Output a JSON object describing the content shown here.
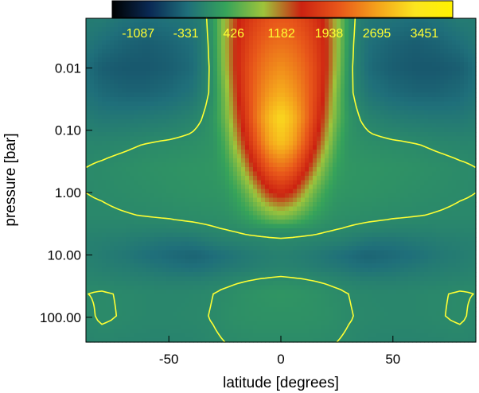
{
  "chart_data": {
    "type": "heatmap",
    "xlabel": "latitude [degrees]",
    "ylabel": "pressure [bar]",
    "x_ticks": [
      {
        "value": -50,
        "label": "-50"
      },
      {
        "value": 0,
        "label": "0"
      },
      {
        "value": 50,
        "label": "50"
      }
    ],
    "y_ticks": [
      {
        "value": 0.01,
        "label": "0.01"
      },
      {
        "value": 0.1,
        "label": "0.10"
      },
      {
        "value": 1,
        "label": "1.00"
      },
      {
        "value": 10,
        "label": "10.00"
      },
      {
        "value": 100,
        "label": "100.00"
      }
    ],
    "xlim": [
      -87,
      87
    ],
    "ylim_pressure": [
      0.0016,
      250
    ],
    "y_scale": "log",
    "y_inverted": true,
    "colorbar": {
      "placement": "top",
      "colormap": [
        "#000000",
        "#0a2a55",
        "#1f6f7a",
        "#36a35a",
        "#9ec43b",
        "#cc2211",
        "#e8571a",
        "#f4a21c",
        "#fbe51f",
        "#fff200"
      ],
      "range": [
        -1500,
        3900
      ],
      "tick_values": [
        -1087,
        -331,
        426,
        1182,
        1938,
        2695,
        3451
      ],
      "tick_labels": [
        "-1087",
        "-331",
        "426",
        "1182",
        "1938",
        "2695",
        "3451"
      ],
      "label_color": "#ffff33"
    },
    "contour_color": "#ffff33",
    "contour_levels": [
      0
    ],
    "field_description": "Zonal-mean zonal wind: strong positive equatorial jet (max ~3200) centered at the equator near 0.1 bar, narrowing with depth and vanishing near 3 bar; weak negative values at mid/high latitudes and near 10 bar.",
    "lat": [
      -87,
      -80,
      -70,
      -60,
      -50,
      -40,
      -35,
      -30,
      -25,
      -20,
      -15,
      -10,
      -5,
      0,
      5,
      10,
      15,
      20,
      25,
      30,
      35,
      40,
      50,
      60,
      70,
      80,
      87
    ],
    "log10_pressure": [
      -2.8,
      -2.4,
      -2.0,
      -1.6,
      -1.2,
      -0.8,
      -0.4,
      0.0,
      0.4,
      0.6,
      0.8,
      1.0,
      1.2,
      1.4,
      1.6,
      2.0,
      2.4
    ],
    "values": [
      [
        -150,
        -150,
        -250,
        -300,
        -250,
        -200,
        -120,
        200,
        900,
        1400,
        1700,
        1900,
        2050,
        2100,
        2050,
        1900,
        1700,
        1400,
        900,
        200,
        -120,
        -200,
        -250,
        -300,
        -250,
        -150,
        -150
      ],
      [
        -200,
        -300,
        -400,
        -450,
        -400,
        -300,
        -150,
        150,
        900,
        1500,
        1850,
        2100,
        2250,
        2300,
        2250,
        2100,
        1850,
        1500,
        900,
        150,
        -150,
        -300,
        -400,
        -450,
        -400,
        -300,
        -200
      ],
      [
        -300,
        -450,
        -500,
        -500,
        -450,
        -350,
        -150,
        100,
        850,
        1500,
        1950,
        2250,
        2450,
        2550,
        2450,
        2250,
        1950,
        1500,
        850,
        100,
        -150,
        -350,
        -450,
        -500,
        -500,
        -450,
        -300
      ],
      [
        -250,
        -350,
        -400,
        -400,
        -350,
        -250,
        -100,
        80,
        700,
        1400,
        1950,
        2350,
        2650,
        2800,
        2650,
        2350,
        1950,
        1400,
        700,
        80,
        -100,
        -250,
        -350,
        -400,
        -400,
        -350,
        -250
      ],
      [
        -150,
        -200,
        -200,
        -180,
        -150,
        -80,
        0,
        150,
        600,
        1250,
        1850,
        2450,
        2950,
        3200,
        2950,
        2450,
        1850,
        1250,
        600,
        150,
        0,
        -80,
        -150,
        -180,
        -200,
        -200,
        -150
      ],
      [
        -50,
        -50,
        -30,
        0,
        20,
        50,
        80,
        120,
        400,
        1000,
        1600,
        2200,
        2750,
        3000,
        2750,
        2200,
        1600,
        1000,
        400,
        120,
        80,
        50,
        20,
        0,
        -30,
        -50,
        -50
      ],
      [
        0,
        20,
        50,
        80,
        100,
        120,
        130,
        150,
        250,
        600,
        1150,
        1700,
        2150,
        2300,
        2150,
        1700,
        1150,
        600,
        250,
        150,
        130,
        120,
        100,
        80,
        50,
        20,
        0
      ],
      [
        0,
        10,
        30,
        50,
        80,
        100,
        110,
        120,
        150,
        300,
        600,
        1050,
        1450,
        1600,
        1450,
        1050,
        600,
        300,
        150,
        120,
        110,
        100,
        80,
        50,
        30,
        10,
        0
      ],
      [
        -20,
        -20,
        -10,
        0,
        10,
        30,
        40,
        50,
        60,
        120,
        220,
        400,
        600,
        700,
        600,
        400,
        220,
        120,
        60,
        50,
        40,
        30,
        10,
        0,
        -10,
        -20,
        -20
      ],
      [
        -60,
        -60,
        -70,
        -80,
        -80,
        -60,
        -40,
        -20,
        0,
        20,
        50,
        60,
        60,
        60,
        60,
        60,
        50,
        20,
        0,
        -20,
        -40,
        -60,
        -80,
        -80,
        -70,
        -60,
        -60
      ],
      [
        -100,
        -120,
        -150,
        -200,
        -250,
        -250,
        -200,
        -150,
        -120,
        -100,
        -80,
        -60,
        -40,
        -30,
        -40,
        -60,
        -80,
        -100,
        -120,
        -150,
        -200,
        -250,
        -250,
        -200,
        -150,
        -120,
        -100
      ],
      [
        -100,
        -150,
        -200,
        -300,
        -350,
        -400,
        -380,
        -330,
        -280,
        -230,
        -180,
        -150,
        -120,
        -100,
        -120,
        -150,
        -180,
        -230,
        -280,
        -330,
        -380,
        -400,
        -350,
        -300,
        -200,
        -150,
        -100
      ],
      [
        -80,
        -120,
        -150,
        -200,
        -260,
        -300,
        -280,
        -240,
        -200,
        -170,
        -140,
        -110,
        -90,
        -80,
        -90,
        -110,
        -140,
        -170,
        -200,
        -240,
        -280,
        -300,
        -260,
        -200,
        -150,
        -120,
        -80
      ],
      [
        -40,
        -60,
        -80,
        -100,
        -120,
        -120,
        -110,
        -90,
        -60,
        -30,
        -10,
        10,
        20,
        30,
        20,
        10,
        -10,
        -30,
        -60,
        -90,
        -110,
        -120,
        -120,
        -100,
        -80,
        -60,
        -40
      ],
      [
        0,
        10,
        -10,
        -30,
        -40,
        -30,
        -20,
        0,
        30,
        60,
        90,
        110,
        130,
        140,
        130,
        110,
        90,
        60,
        30,
        0,
        -20,
        -30,
        -40,
        -30,
        -10,
        10,
        0
      ],
      [
        -30,
        20,
        -10,
        -30,
        -30,
        -20,
        -10,
        10,
        40,
        70,
        80,
        90,
        90,
        90,
        90,
        90,
        80,
        70,
        40,
        10,
        -10,
        -20,
        -30,
        -30,
        -10,
        20,
        -30
      ],
      [
        -60,
        -50,
        -60,
        -70,
        -70,
        -60,
        -40,
        -20,
        0,
        10,
        20,
        30,
        30,
        30,
        30,
        30,
        20,
        10,
        0,
        -20,
        -40,
        -60,
        -70,
        -70,
        -60,
        -50,
        -60
      ]
    ]
  }
}
